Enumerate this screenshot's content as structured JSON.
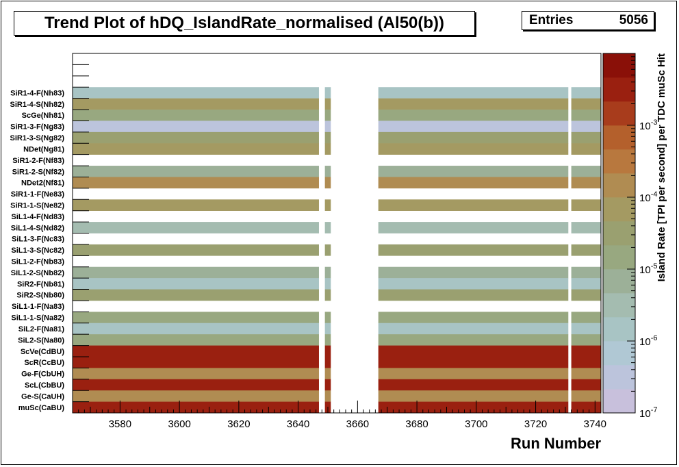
{
  "chart_data": {
    "type": "heatmap",
    "title": "Trend Plot of hDQ_IslandRate_normalised (Al50(b))",
    "stats": {
      "entries_label": "Entries",
      "entries_value": "5056"
    },
    "xlabel": "Run Number",
    "zlabel": "Island Rate [TPI per second] per TDC muSc Hit",
    "xlim": [
      3564,
      3742
    ],
    "zscale": "log",
    "zlim": [
      1e-07,
      0.01
    ],
    "x_ticks": [
      "3580",
      "3600",
      "3620",
      "3640",
      "3660",
      "3680",
      "3700",
      "3720",
      "3740"
    ],
    "z_ticks": [
      {
        "base": "10",
        "exp": "-7",
        "value": -7
      },
      {
        "base": "10",
        "exp": "-6",
        "value": -6
      },
      {
        "base": "10",
        "exp": "-5",
        "value": -5
      },
      {
        "base": "10",
        "exp": "-4",
        "value": -4
      },
      {
        "base": "10",
        "exp": "-3",
        "value": -3
      }
    ],
    "missing_run_ranges": [
      [
        3647,
        3649
      ],
      [
        3651,
        3667
      ],
      [
        3731,
        3732
      ]
    ],
    "rows_top_to_bottom": [
      {
        "label": "",
        "log_rate": null
      },
      {
        "label": "",
        "log_rate": null
      },
      {
        "label": "",
        "log_rate": null
      },
      {
        "label": "SiR1-4-F(Nh83)",
        "log_rate": -5.9
      },
      {
        "label": "SiR1-4-S(Nh82)",
        "log_rate": -4.2
      },
      {
        "label": "ScGe(Nh81)",
        "log_rate": -4.9
      },
      {
        "label": "SiR1-3-F(Ng83)",
        "log_rate": -6.6
      },
      {
        "label": "SiR1-3-S(Ng82)",
        "log_rate": -4.6
      },
      {
        "label": "NDet(Ng81)",
        "log_rate": -4.1
      },
      {
        "label": "SiR1-2-F(Nf83)",
        "log_rate": null
      },
      {
        "label": "SiR1-2-S(Nf82)",
        "log_rate": -5.2
      },
      {
        "label": "NDet2(Nf81)",
        "log_rate": -4.0
      },
      {
        "label": "SiR1-1-F(Ne83)",
        "log_rate": null
      },
      {
        "label": "SiR1-1-S(Ne82)",
        "log_rate": -4.3
      },
      {
        "label": "SiL1-4-F(Nd83)",
        "log_rate": null
      },
      {
        "label": "SiL1-4-S(Nd82)",
        "log_rate": -5.4
      },
      {
        "label": "SiL1-3-F(Nc83)",
        "log_rate": null
      },
      {
        "label": "SiL1-3-S(Nc82)",
        "log_rate": -4.5
      },
      {
        "label": "SiL1-2-F(Nb83)",
        "log_rate": null
      },
      {
        "label": "SiL1-2-S(Nb82)",
        "log_rate": -5.1
      },
      {
        "label": "SiR2-F(Nb81)",
        "log_rate": -5.7
      },
      {
        "label": "SiR2-S(Nb80)",
        "log_rate": -4.4
      },
      {
        "label": "SiL1-1-F(Na83)",
        "log_rate": null
      },
      {
        "label": "SiL1-1-S(Na82)",
        "log_rate": -4.8
      },
      {
        "label": "SiL2-F(Na81)",
        "log_rate": -5.8
      },
      {
        "label": "SiL2-S(Na80)",
        "log_rate": -5.0
      },
      {
        "label": "ScVe(CdBU)",
        "log_rate": -2.5
      },
      {
        "label": "ScR(CcBU)",
        "log_rate": -2.4
      },
      {
        "label": "Ge-F(CbUH)",
        "log_rate": -3.9
      },
      {
        "label": "ScL(CbBU)",
        "log_rate": -2.4
      },
      {
        "label": "Ge-S(CaUH)",
        "log_rate": -3.8
      },
      {
        "label": "muSc(CaBU)",
        "log_rate": -2.6
      }
    ]
  },
  "palette_low_to_high": [
    "#c8c0dc",
    "#bcc4dc",
    "#b0c8d4",
    "#a8c4c4",
    "#a4bcb0",
    "#9cb098",
    "#98a880",
    "#9aa070",
    "#a49a62",
    "#b08c52",
    "#b8783e",
    "#b4602c",
    "#a83c1c",
    "#9a2010",
    "#8a1008"
  ]
}
